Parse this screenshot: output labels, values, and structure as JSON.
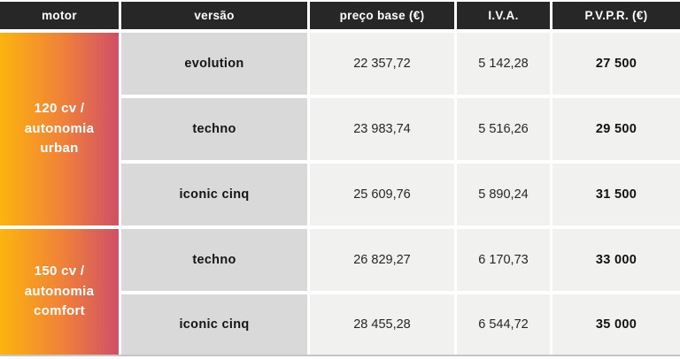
{
  "colors": {
    "header-bg": "#272727",
    "gradient-start": "#FCB40F",
    "gradient-mid": "#EF7F3C",
    "gradient-end": "#CE4F68",
    "version-cell-bg": "#D9D9D9",
    "value-cell-bg": "#F1F1F0",
    "bottom-line": "#C6C6C6"
  },
  "table": {
    "headers": [
      "motor",
      "versão",
      "preço base (€)",
      "I.V.A.",
      "P.V.P.R. (€)"
    ],
    "groups": [
      {
        "motor_label": "120 cv /\nautonomia\nurban",
        "rows": [
          {
            "version": "evolution",
            "base_price": "22 357,72",
            "vat": "5 142,28",
            "pvpr": "27 500"
          },
          {
            "version": "techno",
            "base_price": "23 983,74",
            "vat": "5 516,26",
            "pvpr": "29 500"
          },
          {
            "version": "iconic cinq",
            "base_price": "25 609,76",
            "vat": "5 890,24",
            "pvpr": "31 500"
          }
        ]
      },
      {
        "motor_label": "150 cv /\nautonomia\ncomfort",
        "rows": [
          {
            "version": "techno",
            "base_price": "26 829,27",
            "vat": "6 170,73",
            "pvpr": "33 000"
          },
          {
            "version": "iconic cinq",
            "base_price": "28 455,28",
            "vat": "6 544,72",
            "pvpr": "35 000"
          }
        ]
      }
    ]
  }
}
